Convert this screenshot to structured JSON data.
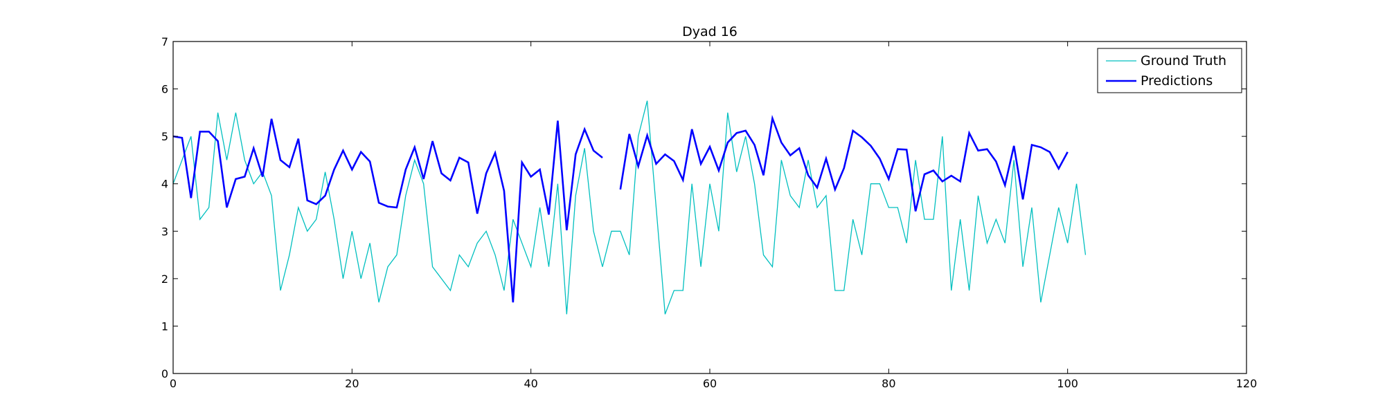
{
  "chart_data": {
    "type": "line",
    "title": "Dyad 16",
    "xlabel": "",
    "ylabel": "",
    "xlim": [
      0,
      120
    ],
    "ylim": [
      0,
      7
    ],
    "x_ticks": [
      0,
      20,
      40,
      60,
      80,
      100,
      120
    ],
    "y_ticks": [
      0,
      1,
      2,
      3,
      4,
      5,
      6,
      7
    ],
    "grid": false,
    "legend_position": "top-right",
    "series": [
      {
        "name": "Ground Truth",
        "color": "#00bfbf",
        "style": "thin",
        "points": [
          [
            0,
            4.0
          ],
          [
            1,
            4.5
          ],
          [
            2,
            5.0
          ],
          [
            3,
            3.25
          ],
          [
            4,
            3.5
          ],
          [
            5,
            5.5
          ],
          [
            6,
            4.5
          ],
          [
            7,
            5.5
          ],
          [
            8,
            4.5
          ],
          [
            9,
            4.0
          ],
          [
            10,
            4.25
          ],
          [
            11,
            3.75
          ],
          [
            12,
            1.75
          ],
          [
            13,
            2.5
          ],
          [
            14,
            3.5
          ],
          [
            15,
            3.0
          ],
          [
            16,
            3.25
          ],
          [
            17,
            4.25
          ],
          [
            18,
            3.25
          ],
          [
            19,
            2.0
          ],
          [
            20,
            3.0
          ],
          [
            21,
            2.0
          ],
          [
            22,
            2.75
          ],
          [
            23,
            1.5
          ],
          [
            24,
            2.25
          ],
          [
            25,
            2.5
          ],
          [
            26,
            3.75
          ],
          [
            27,
            4.5
          ],
          [
            28,
            4.0
          ],
          [
            29,
            2.25
          ],
          [
            30,
            2.0
          ],
          [
            31,
            1.75
          ],
          [
            32,
            2.5
          ],
          [
            33,
            2.25
          ],
          [
            34,
            2.75
          ],
          [
            35,
            3.0
          ],
          [
            36,
            2.5
          ],
          [
            37,
            1.75
          ],
          [
            38,
            3.25
          ],
          [
            39,
            2.75
          ],
          [
            40,
            2.25
          ],
          [
            41,
            3.5
          ],
          [
            42,
            2.25
          ],
          [
            43,
            4.0
          ],
          [
            44,
            1.25
          ],
          [
            45,
            3.75
          ],
          [
            46,
            4.75
          ],
          [
            47,
            3.0
          ],
          [
            48,
            2.25
          ],
          [
            49,
            3.0
          ],
          [
            50,
            3.0
          ],
          [
            51,
            2.5
          ],
          [
            52,
            5.0
          ],
          [
            53,
            5.75
          ],
          [
            54,
            3.5
          ],
          [
            55,
            1.25
          ],
          [
            56,
            1.75
          ],
          [
            57,
            1.75
          ],
          [
            58,
            4.0
          ],
          [
            59,
            2.25
          ],
          [
            60,
            4.0
          ],
          [
            61,
            3.0
          ],
          [
            62,
            5.5
          ],
          [
            63,
            4.25
          ],
          [
            64,
            5.0
          ],
          [
            65,
            4.0
          ],
          [
            66,
            2.5
          ],
          [
            67,
            2.25
          ],
          [
            68,
            4.5
          ],
          [
            69,
            3.75
          ],
          [
            70,
            3.5
          ],
          [
            71,
            4.5
          ],
          [
            72,
            3.5
          ],
          [
            73,
            3.75
          ],
          [
            74,
            1.75
          ],
          [
            75,
            1.75
          ],
          [
            76,
            3.25
          ],
          [
            77,
            2.5
          ],
          [
            78,
            4.0
          ],
          [
            79,
            4.0
          ],
          [
            80,
            3.5
          ],
          [
            81,
            3.5
          ],
          [
            82,
            2.75
          ],
          [
            83,
            4.5
          ],
          [
            84,
            3.25
          ],
          [
            85,
            3.25
          ],
          [
            86,
            5.0
          ],
          [
            87,
            1.75
          ],
          [
            88,
            3.25
          ],
          [
            89,
            1.75
          ],
          [
            90,
            3.75
          ],
          [
            91,
            2.75
          ],
          [
            92,
            3.25
          ],
          [
            93,
            2.75
          ],
          [
            94,
            4.5
          ],
          [
            95,
            2.25
          ],
          [
            96,
            3.5
          ],
          [
            97,
            1.5
          ],
          [
            98,
            2.5
          ],
          [
            99,
            3.5
          ],
          [
            100,
            2.75
          ],
          [
            101,
            4.0
          ],
          [
            102,
            2.5
          ]
        ]
      },
      {
        "name": "Predictions",
        "color": "#0000ff",
        "style": "thick",
        "segments": [
          [
            [
              0,
              5.0
            ],
            [
              1,
              4.97
            ],
            [
              2,
              3.7
            ],
            [
              3,
              5.1
            ],
            [
              4,
              5.1
            ],
            [
              5,
              4.9
            ],
            [
              6,
              3.5
            ],
            [
              7,
              4.1
            ],
            [
              8,
              4.15
            ],
            [
              9,
              4.75
            ],
            [
              10,
              4.15
            ],
            [
              11,
              5.37
            ],
            [
              12,
              4.5
            ],
            [
              13,
              4.35
            ],
            [
              14,
              4.95
            ],
            [
              15,
              3.65
            ],
            [
              16,
              3.57
            ],
            [
              17,
              3.75
            ],
            [
              18,
              4.3
            ],
            [
              19,
              4.7
            ],
            [
              20,
              4.3
            ],
            [
              21,
              4.67
            ],
            [
              22,
              4.47
            ],
            [
              23,
              3.6
            ],
            [
              24,
              3.52
            ],
            [
              25,
              3.5
            ],
            [
              26,
              4.3
            ],
            [
              27,
              4.77
            ],
            [
              28,
              4.1
            ],
            [
              29,
              4.9
            ],
            [
              30,
              4.22
            ],
            [
              31,
              4.07
            ],
            [
              32,
              4.55
            ],
            [
              33,
              4.45
            ],
            [
              34,
              3.37
            ],
            [
              35,
              4.22
            ],
            [
              36,
              4.65
            ],
            [
              37,
              3.85
            ],
            [
              38,
              1.5
            ],
            [
              39,
              4.45
            ],
            [
              40,
              4.15
            ],
            [
              41,
              4.3
            ],
            [
              42,
              3.35
            ],
            [
              43,
              5.33
            ],
            [
              44,
              3.02
            ],
            [
              45,
              4.62
            ],
            [
              46,
              5.15
            ],
            [
              47,
              4.7
            ],
            [
              48,
              4.55
            ]
          ],
          [
            [
              50,
              3.88
            ],
            [
              51,
              5.05
            ],
            [
              52,
              4.37
            ],
            [
              53,
              5.02
            ],
            [
              54,
              4.42
            ],
            [
              55,
              4.62
            ],
            [
              56,
              4.48
            ],
            [
              57,
              4.08
            ],
            [
              58,
              5.15
            ],
            [
              59,
              4.42
            ],
            [
              60,
              4.78
            ],
            [
              61,
              4.28
            ],
            [
              62,
              4.87
            ],
            [
              63,
              5.07
            ],
            [
              64,
              5.12
            ],
            [
              65,
              4.82
            ],
            [
              66,
              4.18
            ],
            [
              67,
              5.38
            ],
            [
              68,
              4.87
            ],
            [
              69,
              4.6
            ],
            [
              70,
              4.75
            ],
            [
              71,
              4.18
            ],
            [
              72,
              3.92
            ],
            [
              73,
              4.53
            ],
            [
              74,
              3.88
            ],
            [
              75,
              4.33
            ],
            [
              76,
              5.12
            ],
            [
              77,
              4.98
            ],
            [
              78,
              4.8
            ],
            [
              79,
              4.53
            ],
            [
              80,
              4.1
            ],
            [
              81,
              4.73
            ],
            [
              82,
              4.72
            ],
            [
              83,
              3.42
            ],
            [
              84,
              4.2
            ],
            [
              85,
              4.28
            ],
            [
              86,
              4.05
            ],
            [
              87,
              4.17
            ],
            [
              88,
              4.05
            ],
            [
              89,
              5.07
            ],
            [
              90,
              4.7
            ],
            [
              91,
              4.73
            ],
            [
              92,
              4.47
            ],
            [
              93,
              3.97
            ],
            [
              94,
              4.8
            ],
            [
              95,
              3.67
            ],
            [
              96,
              4.82
            ],
            [
              97,
              4.77
            ],
            [
              98,
              4.67
            ],
            [
              99,
              4.32
            ],
            [
              100,
              4.67
            ]
          ]
        ]
      }
    ]
  }
}
